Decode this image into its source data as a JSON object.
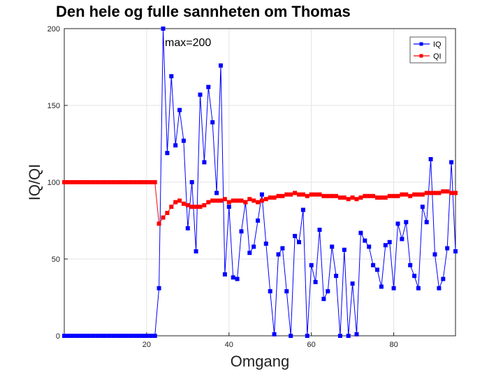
{
  "chart_data": {
    "type": "line",
    "title": "Den hele og fulle sannheten om Thomas",
    "xlabel": "Omgang",
    "ylabel": "IQ/QI",
    "xlim": [
      0,
      95
    ],
    "ylim": [
      0,
      200
    ],
    "xticks": [
      20,
      40,
      60,
      80
    ],
    "yticks": [
      0,
      50,
      100,
      150,
      200
    ],
    "grid": true,
    "legend_position": "top-right",
    "annotation": "max=200",
    "annotation_at": [
      24,
      200
    ],
    "series": [
      {
        "name": "IQ",
        "color": "#0000ff",
        "marker": "square",
        "x": [
          0,
          1,
          2,
          3,
          4,
          5,
          6,
          7,
          8,
          9,
          10,
          11,
          12,
          13,
          14,
          15,
          16,
          17,
          18,
          19,
          20,
          21,
          22,
          23,
          24,
          25,
          26,
          27,
          28,
          29,
          30,
          31,
          32,
          33,
          34,
          35,
          36,
          37,
          38,
          39,
          40,
          41,
          42,
          43,
          44,
          45,
          46,
          47,
          48,
          49,
          50,
          51,
          52,
          53,
          54,
          55,
          56,
          57,
          58,
          59,
          60,
          61,
          62,
          63,
          64,
          65,
          66,
          67,
          68,
          69,
          70,
          71,
          72,
          73,
          74,
          75,
          76,
          77,
          78,
          79,
          80,
          81,
          82,
          83,
          84,
          85,
          86,
          87,
          88,
          89,
          90,
          91,
          92,
          93,
          94,
          95
        ],
        "y": [
          0,
          0,
          0,
          0,
          0,
          0,
          0,
          0,
          0,
          0,
          0,
          0,
          0,
          0,
          0,
          0,
          0,
          0,
          0,
          0,
          0,
          0,
          0,
          31,
          200,
          119,
          169,
          124,
          147,
          127,
          70,
          100,
          55,
          157,
          113,
          162,
          139,
          93,
          176,
          40,
          84,
          38,
          37,
          68,
          87,
          54,
          58,
          75,
          92,
          60,
          29,
          1,
          53,
          57,
          29,
          0,
          65,
          61,
          82,
          0,
          46,
          35,
          69,
          24,
          29,
          58,
          39,
          0,
          56,
          0,
          34,
          1,
          67,
          62,
          58,
          46,
          43,
          32,
          59,
          61,
          31,
          73,
          63,
          74,
          46,
          39,
          31,
          84,
          74,
          115,
          53,
          31,
          37,
          57,
          113,
          55
        ]
      },
      {
        "name": "QI",
        "color": "#ff0000",
        "marker": "square",
        "x": [
          0,
          1,
          2,
          3,
          4,
          5,
          6,
          7,
          8,
          9,
          10,
          11,
          12,
          13,
          14,
          15,
          16,
          17,
          18,
          19,
          20,
          21,
          22,
          23,
          24,
          25,
          26,
          27,
          28,
          29,
          30,
          31,
          32,
          33,
          34,
          35,
          36,
          37,
          38,
          39,
          40,
          41,
          42,
          43,
          44,
          45,
          46,
          47,
          48,
          49,
          50,
          51,
          52,
          53,
          54,
          55,
          56,
          57,
          58,
          59,
          60,
          61,
          62,
          63,
          64,
          65,
          66,
          67,
          68,
          69,
          70,
          71,
          72,
          73,
          74,
          75,
          76,
          77,
          78,
          79,
          80,
          81,
          82,
          83,
          84,
          85,
          86,
          87,
          88,
          89,
          90,
          91,
          92,
          93,
          94,
          95
        ],
        "y": [
          100,
          100,
          100,
          100,
          100,
          100,
          100,
          100,
          100,
          100,
          100,
          100,
          100,
          100,
          100,
          100,
          100,
          100,
          100,
          100,
          100,
          100,
          100,
          73,
          77,
          80,
          84,
          87,
          88,
          86,
          85,
          84,
          84,
          84,
          85,
          87,
          88,
          88,
          88,
          89,
          87,
          88,
          88,
          88,
          87,
          89,
          88,
          87,
          88,
          89,
          90,
          90,
          91,
          91,
          92,
          92,
          93,
          92,
          92,
          91,
          92,
          92,
          92,
          91,
          91,
          91,
          91,
          90,
          90,
          89,
          90,
          89,
          90,
          91,
          91,
          91,
          90,
          90,
          90,
          91,
          91,
          91,
          92,
          92,
          91,
          92,
          92,
          92,
          93,
          93,
          93,
          93,
          94,
          94,
          93,
          93
        ]
      }
    ]
  }
}
